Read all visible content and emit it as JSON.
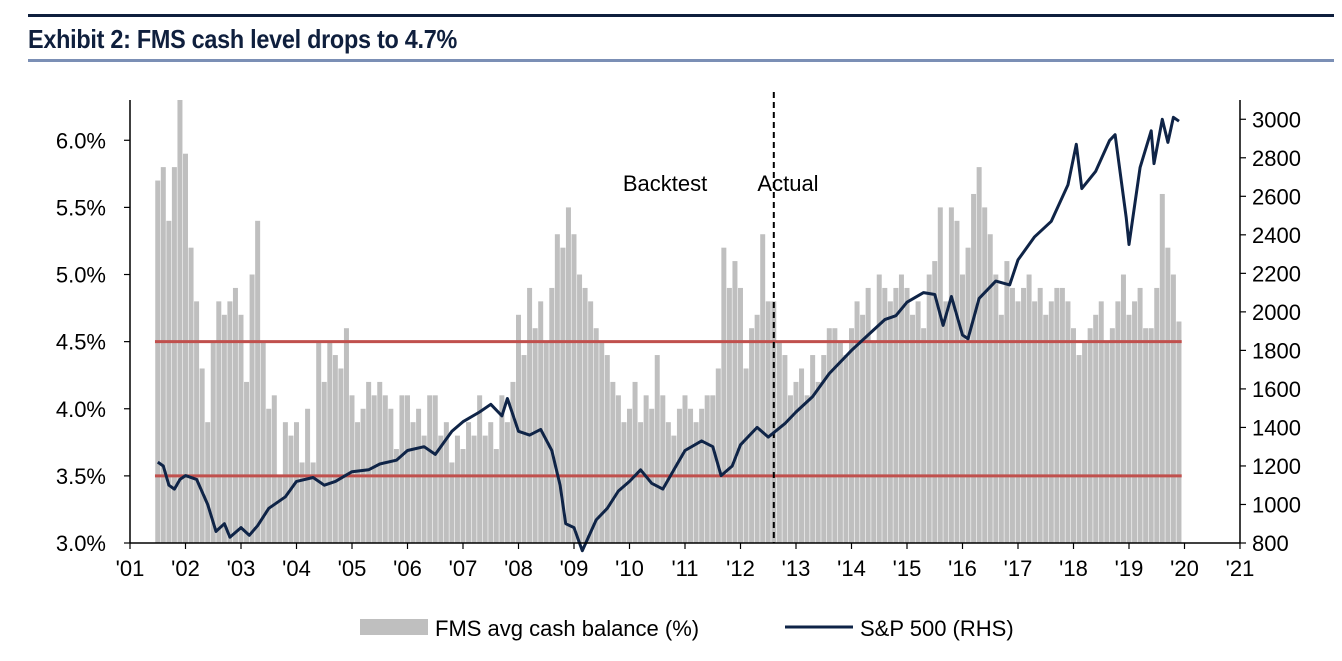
{
  "title": "Exhibit 2: FMS cash level drops to 4.7%",
  "colors": {
    "bars": "#bfbfbf",
    "line": "#0f2447",
    "threshold": "#c0504d",
    "axis": "#000000",
    "title": "#0f1f3d"
  },
  "chart_data": {
    "type": "bar",
    "title": "Exhibit 2: FMS cash level drops to 4.7%",
    "x_ticks": [
      "'01",
      "'02",
      "'03",
      "'04",
      "'05",
      "'06",
      "'07",
      "'08",
      "'09",
      "'10",
      "'11",
      "'12",
      "'13",
      "'14",
      "'15",
      "'16",
      "'17",
      "'18",
      "'19",
      "'20",
      "'21"
    ],
    "x_range": [
      2001,
      2021
    ],
    "y_left": {
      "min": 3.0,
      "max": 6.3,
      "ticks": [
        "3.0%",
        "3.5%",
        "4.0%",
        "4.5%",
        "5.0%",
        "5.5%",
        "6.0%"
      ],
      "tick_values": [
        3.0,
        3.5,
        4.0,
        4.5,
        5.0,
        5.5,
        6.0
      ]
    },
    "y_right": {
      "min": 800,
      "max": 3100,
      "ticks": [
        "800",
        "1000",
        "1200",
        "1400",
        "1600",
        "1800",
        "2000",
        "2200",
        "2400",
        "2600",
        "2800",
        "3000"
      ],
      "tick_values": [
        800,
        1000,
        1200,
        1400,
        1600,
        1800,
        2000,
        2200,
        2400,
        2600,
        2800,
        3000
      ]
    },
    "thresholds": [
      4.5,
      3.5
    ],
    "divider_x": 2012.6,
    "annotations": {
      "left": "Backtest",
      "right": "Actual"
    },
    "legend": {
      "bars": "FMS avg cash balance (%)",
      "line": "S&P 500 (RHS)",
      "position": "bottom"
    },
    "series": [
      {
        "name": "FMS avg cash balance (%)",
        "type": "bar",
        "axis": "left",
        "points": [
          [
            2001.5,
            5.7
          ],
          [
            2001.6,
            5.8
          ],
          [
            2001.7,
            5.4
          ],
          [
            2001.8,
            5.8
          ],
          [
            2001.9,
            6.3
          ],
          [
            2002.0,
            5.9
          ],
          [
            2002.1,
            5.2
          ],
          [
            2002.2,
            4.8
          ],
          [
            2002.3,
            4.3
          ],
          [
            2002.4,
            3.9
          ],
          [
            2002.5,
            4.5
          ],
          [
            2002.6,
            4.8
          ],
          [
            2002.7,
            4.7
          ],
          [
            2002.8,
            4.8
          ],
          [
            2002.9,
            4.9
          ],
          [
            2003.0,
            4.7
          ],
          [
            2003.1,
            4.2
          ],
          [
            2003.2,
            5.0
          ],
          [
            2003.3,
            5.4
          ],
          [
            2003.4,
            4.5
          ],
          [
            2003.5,
            4.0
          ],
          [
            2003.6,
            4.1
          ],
          [
            2003.7,
            3.5
          ],
          [
            2003.8,
            3.9
          ],
          [
            2003.9,
            3.8
          ],
          [
            2004.0,
            3.9
          ],
          [
            2004.1,
            3.6
          ],
          [
            2004.2,
            4.0
          ],
          [
            2004.3,
            3.6
          ],
          [
            2004.4,
            4.5
          ],
          [
            2004.5,
            4.2
          ],
          [
            2004.6,
            4.5
          ],
          [
            2004.7,
            4.4
          ],
          [
            2004.8,
            4.3
          ],
          [
            2004.9,
            4.6
          ],
          [
            2005.0,
            4.1
          ],
          [
            2005.1,
            3.9
          ],
          [
            2005.2,
            4.0
          ],
          [
            2005.3,
            4.2
          ],
          [
            2005.4,
            4.1
          ],
          [
            2005.5,
            4.2
          ],
          [
            2005.6,
            4.1
          ],
          [
            2005.7,
            4.0
          ],
          [
            2005.8,
            3.7
          ],
          [
            2005.9,
            4.1
          ],
          [
            2006.0,
            4.1
          ],
          [
            2006.1,
            3.9
          ],
          [
            2006.2,
            4.0
          ],
          [
            2006.3,
            3.8
          ],
          [
            2006.4,
            4.1
          ],
          [
            2006.5,
            4.1
          ],
          [
            2006.6,
            3.8
          ],
          [
            2006.7,
            3.9
          ],
          [
            2006.8,
            3.6
          ],
          [
            2006.9,
            3.8
          ],
          [
            2007.0,
            3.7
          ],
          [
            2007.1,
            3.9
          ],
          [
            2007.2,
            3.8
          ],
          [
            2007.3,
            4.1
          ],
          [
            2007.4,
            3.8
          ],
          [
            2007.5,
            3.9
          ],
          [
            2007.6,
            3.7
          ],
          [
            2007.7,
            4.1
          ],
          [
            2007.8,
            3.9
          ],
          [
            2007.9,
            4.2
          ],
          [
            2008.0,
            4.7
          ],
          [
            2008.1,
            4.4
          ],
          [
            2008.2,
            4.9
          ],
          [
            2008.3,
            4.6
          ],
          [
            2008.4,
            4.8
          ],
          [
            2008.5,
            4.5
          ],
          [
            2008.6,
            4.9
          ],
          [
            2008.7,
            5.3
          ],
          [
            2008.8,
            5.2
          ],
          [
            2008.9,
            5.5
          ],
          [
            2009.0,
            5.3
          ],
          [
            2009.1,
            5.0
          ],
          [
            2009.2,
            4.9
          ],
          [
            2009.3,
            4.8
          ],
          [
            2009.4,
            4.6
          ],
          [
            2009.5,
            4.5
          ],
          [
            2009.6,
            4.4
          ],
          [
            2009.7,
            4.2
          ],
          [
            2009.8,
            4.1
          ],
          [
            2009.9,
            3.9
          ],
          [
            2010.0,
            4.0
          ],
          [
            2010.1,
            4.2
          ],
          [
            2010.2,
            3.9
          ],
          [
            2010.3,
            4.1
          ],
          [
            2010.4,
            4.0
          ],
          [
            2010.5,
            4.4
          ],
          [
            2010.6,
            4.1
          ],
          [
            2010.7,
            3.9
          ],
          [
            2010.8,
            3.8
          ],
          [
            2010.9,
            4.0
          ],
          [
            2011.0,
            4.1
          ],
          [
            2011.1,
            4.0
          ],
          [
            2011.2,
            3.9
          ],
          [
            2011.3,
            4.0
          ],
          [
            2011.4,
            4.1
          ],
          [
            2011.5,
            4.1
          ],
          [
            2011.6,
            4.3
          ],
          [
            2011.7,
            5.2
          ],
          [
            2011.8,
            4.9
          ],
          [
            2011.9,
            5.1
          ],
          [
            2012.0,
            4.9
          ],
          [
            2012.1,
            4.3
          ],
          [
            2012.2,
            4.6
          ],
          [
            2012.3,
            4.7
          ],
          [
            2012.4,
            5.3
          ],
          [
            2012.5,
            4.8
          ],
          [
            2012.6,
            4.8
          ],
          [
            2012.7,
            4.5
          ],
          [
            2012.8,
            4.4
          ],
          [
            2012.9,
            4.1
          ],
          [
            2013.0,
            4.2
          ],
          [
            2013.1,
            4.3
          ],
          [
            2013.2,
            4.1
          ],
          [
            2013.3,
            4.4
          ],
          [
            2013.4,
            4.2
          ],
          [
            2013.5,
            4.4
          ],
          [
            2013.6,
            4.6
          ],
          [
            2013.7,
            4.6
          ],
          [
            2013.8,
            4.5
          ],
          [
            2013.9,
            4.4
          ],
          [
            2014.0,
            4.6
          ],
          [
            2014.1,
            4.8
          ],
          [
            2014.2,
            4.7
          ],
          [
            2014.3,
            4.9
          ],
          [
            2014.4,
            4.5
          ],
          [
            2014.5,
            5.0
          ],
          [
            2014.6,
            4.9
          ],
          [
            2014.7,
            4.8
          ],
          [
            2014.8,
            4.9
          ],
          [
            2014.9,
            5.0
          ],
          [
            2015.0,
            4.9
          ],
          [
            2015.1,
            4.7
          ],
          [
            2015.2,
            4.8
          ],
          [
            2015.3,
            4.6
          ],
          [
            2015.4,
            5.0
          ],
          [
            2015.5,
            5.1
          ],
          [
            2015.6,
            5.5
          ],
          [
            2015.7,
            4.8
          ],
          [
            2015.8,
            5.5
          ],
          [
            2015.9,
            5.4
          ],
          [
            2016.0,
            5.0
          ],
          [
            2016.1,
            5.2
          ],
          [
            2016.2,
            5.6
          ],
          [
            2016.3,
            5.8
          ],
          [
            2016.4,
            5.5
          ],
          [
            2016.5,
            5.3
          ],
          [
            2016.6,
            5.0
          ],
          [
            2016.7,
            4.7
          ],
          [
            2016.8,
            5.1
          ],
          [
            2016.9,
            4.9
          ],
          [
            2017.0,
            4.8
          ],
          [
            2017.1,
            4.9
          ],
          [
            2017.2,
            5.0
          ],
          [
            2017.3,
            4.8
          ],
          [
            2017.4,
            4.9
          ],
          [
            2017.5,
            4.7
          ],
          [
            2017.6,
            4.8
          ],
          [
            2017.7,
            4.9
          ],
          [
            2017.8,
            4.9
          ],
          [
            2017.9,
            4.8
          ],
          [
            2018.0,
            4.6
          ],
          [
            2018.1,
            4.4
          ],
          [
            2018.2,
            4.5
          ],
          [
            2018.3,
            4.6
          ],
          [
            2018.4,
            4.7
          ],
          [
            2018.5,
            4.8
          ],
          [
            2018.6,
            4.5
          ],
          [
            2018.7,
            4.6
          ],
          [
            2018.8,
            4.8
          ],
          [
            2018.9,
            5.0
          ],
          [
            2019.0,
            4.7
          ],
          [
            2019.1,
            4.8
          ],
          [
            2019.2,
            4.9
          ],
          [
            2019.3,
            4.6
          ],
          [
            2019.4,
            4.6
          ],
          [
            2019.5,
            4.9
          ],
          [
            2019.6,
            5.6
          ],
          [
            2019.7,
            5.2
          ],
          [
            2019.8,
            5.0
          ],
          [
            2019.9,
            4.65
          ]
        ]
      },
      {
        "name": "S&P 500 (RHS)",
        "type": "line",
        "axis": "right",
        "points": [
          [
            2001.5,
            1220
          ],
          [
            2001.6,
            1200
          ],
          [
            2001.7,
            1100
          ],
          [
            2001.8,
            1080
          ],
          [
            2001.9,
            1130
          ],
          [
            2002.0,
            1150
          ],
          [
            2002.2,
            1130
          ],
          [
            2002.4,
            1000
          ],
          [
            2002.55,
            860
          ],
          [
            2002.7,
            900
          ],
          [
            2002.8,
            830
          ],
          [
            2003.0,
            880
          ],
          [
            2003.15,
            840
          ],
          [
            2003.3,
            890
          ],
          [
            2003.5,
            980
          ],
          [
            2003.8,
            1040
          ],
          [
            2004.0,
            1120
          ],
          [
            2004.3,
            1140
          ],
          [
            2004.5,
            1100
          ],
          [
            2004.7,
            1120
          ],
          [
            2005.0,
            1170
          ],
          [
            2005.3,
            1180
          ],
          [
            2005.5,
            1210
          ],
          [
            2005.8,
            1230
          ],
          [
            2006.0,
            1280
          ],
          [
            2006.3,
            1300
          ],
          [
            2006.5,
            1260
          ],
          [
            2006.8,
            1380
          ],
          [
            2007.0,
            1430
          ],
          [
            2007.3,
            1480
          ],
          [
            2007.5,
            1520
          ],
          [
            2007.7,
            1460
          ],
          [
            2007.8,
            1550
          ],
          [
            2008.0,
            1380
          ],
          [
            2008.2,
            1360
          ],
          [
            2008.4,
            1390
          ],
          [
            2008.6,
            1280
          ],
          [
            2008.75,
            1100
          ],
          [
            2008.85,
            900
          ],
          [
            2009.0,
            880
          ],
          [
            2009.15,
            760
          ],
          [
            2009.4,
            920
          ],
          [
            2009.6,
            980
          ],
          [
            2009.8,
            1070
          ],
          [
            2010.0,
            1120
          ],
          [
            2010.2,
            1180
          ],
          [
            2010.4,
            1110
          ],
          [
            2010.6,
            1080
          ],
          [
            2010.8,
            1180
          ],
          [
            2011.0,
            1280
          ],
          [
            2011.3,
            1330
          ],
          [
            2011.5,
            1300
          ],
          [
            2011.65,
            1150
          ],
          [
            2011.85,
            1200
          ],
          [
            2012.0,
            1310
          ],
          [
            2012.3,
            1400
          ],
          [
            2012.5,
            1350
          ],
          [
            2012.8,
            1420
          ],
          [
            2013.0,
            1480
          ],
          [
            2013.3,
            1560
          ],
          [
            2013.6,
            1680
          ],
          [
            2014.0,
            1800
          ],
          [
            2014.3,
            1880
          ],
          [
            2014.6,
            1960
          ],
          [
            2014.8,
            1980
          ],
          [
            2015.0,
            2050
          ],
          [
            2015.3,
            2100
          ],
          [
            2015.5,
            2090
          ],
          [
            2015.65,
            1930
          ],
          [
            2015.8,
            2080
          ],
          [
            2016.0,
            1880
          ],
          [
            2016.1,
            1860
          ],
          [
            2016.3,
            2070
          ],
          [
            2016.6,
            2160
          ],
          [
            2016.85,
            2140
          ],
          [
            2017.0,
            2270
          ],
          [
            2017.3,
            2390
          ],
          [
            2017.6,
            2470
          ],
          [
            2017.9,
            2660
          ],
          [
            2018.05,
            2870
          ],
          [
            2018.15,
            2640
          ],
          [
            2018.4,
            2730
          ],
          [
            2018.65,
            2890
          ],
          [
            2018.75,
            2920
          ],
          [
            2018.95,
            2490
          ],
          [
            2019.0,
            2350
          ],
          [
            2019.2,
            2750
          ],
          [
            2019.4,
            2940
          ],
          [
            2019.45,
            2770
          ],
          [
            2019.6,
            3000
          ],
          [
            2019.7,
            2880
          ],
          [
            2019.8,
            3010
          ],
          [
            2019.9,
            2990
          ]
        ]
      }
    ]
  }
}
